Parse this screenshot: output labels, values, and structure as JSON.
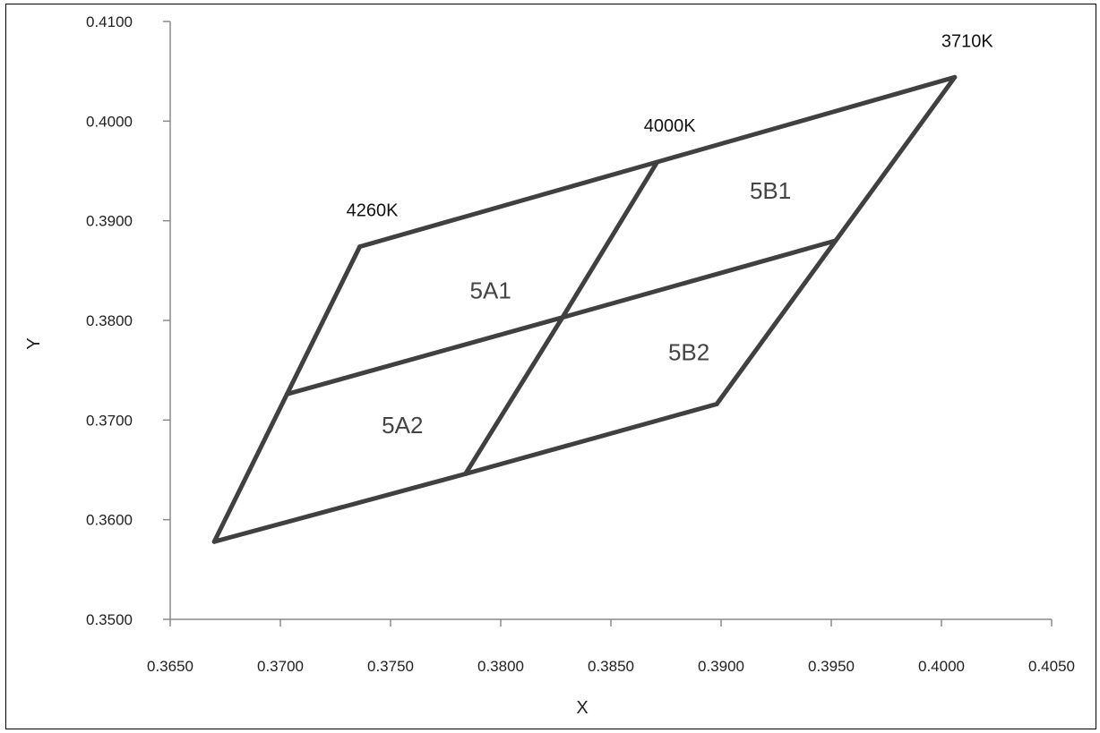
{
  "chart_data": {
    "type": "line",
    "xlabel": "X",
    "ylabel": "Y",
    "xlim": [
      0.365,
      0.405
    ],
    "ylim": [
      0.35,
      0.41
    ],
    "x_ticks": [
      "0.3650",
      "0.3700",
      "0.3750",
      "0.3800",
      "0.3850",
      "0.3900",
      "0.3950",
      "0.4000",
      "0.4050"
    ],
    "y_ticks": [
      "0.3500",
      "0.3600",
      "0.3700",
      "0.3800",
      "0.3900",
      "0.4000",
      "0.4100"
    ],
    "grid": false,
    "line_color": "#404040",
    "segments": [
      [
        [
          0.3736,
          0.3874
        ],
        [
          0.3871,
          0.3959
        ],
        [
          0.4006,
          0.4044
        ]
      ],
      [
        [
          0.367,
          0.3578
        ],
        [
          0.3784,
          0.3646
        ],
        [
          0.3898,
          0.3716
        ]
      ],
      [
        [
          0.3703,
          0.3726
        ],
        [
          0.3828,
          0.3803
        ],
        [
          0.3952,
          0.388
        ]
      ],
      [
        [
          0.367,
          0.3578
        ],
        [
          0.3703,
          0.3726
        ],
        [
          0.3736,
          0.3874
        ]
      ],
      [
        [
          0.3784,
          0.3646
        ],
        [
          0.3828,
          0.3803
        ],
        [
          0.3871,
          0.3959
        ]
      ],
      [
        [
          0.3898,
          0.3716
        ],
        [
          0.3952,
          0.388
        ],
        [
          0.4006,
          0.4044
        ]
      ]
    ],
    "bin_labels": [
      {
        "text": "5A1",
        "x": 0.3786,
        "y": 0.3822
      },
      {
        "text": "5A2",
        "x": 0.3746,
        "y": 0.3687
      },
      {
        "text": "5B1",
        "x": 0.3913,
        "y": 0.3922
      },
      {
        "text": "5B2",
        "x": 0.3876,
        "y": 0.376
      }
    ],
    "cct_labels": [
      {
        "text": "4260K",
        "x": 0.3736,
        "y": 0.3874
      },
      {
        "text": "4000K",
        "x": 0.3871,
        "y": 0.3959
      },
      {
        "text": "3710K",
        "x": 0.4006,
        "y": 0.4044
      }
    ]
  }
}
